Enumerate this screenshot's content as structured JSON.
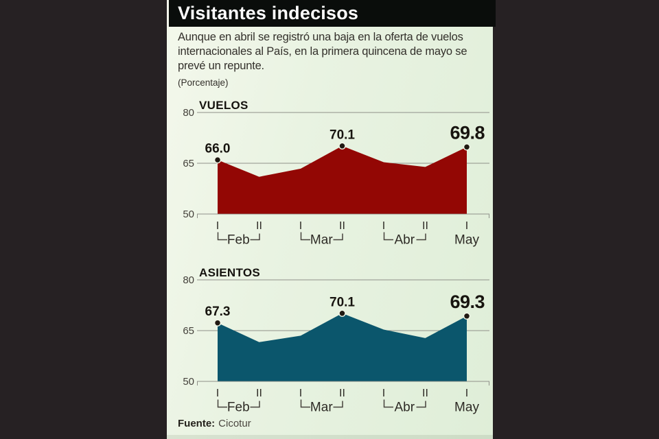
{
  "header": {
    "title": "Visitantes indecisos"
  },
  "intro": {
    "paragraph": "Aunque en abril se registró una baja en la oferta de vuelos internacionales al País, en la primera quincena de mayo se prevé un repunte.",
    "unit_note": "(Porcentaje)"
  },
  "footer": {
    "source_label": "Fuente:",
    "source_value": "Cicotur"
  },
  "colors": {
    "outer_bg": "#262123",
    "title_bar": "#0a0d0b",
    "panel_bg": "#e7f2e0",
    "vuelos_area": "#930704",
    "asientos_area": "#0b566c",
    "dot": "#201912",
    "dot_ring": "#f0f5e6",
    "grid": "#8f9089",
    "bracket": "#46423c",
    "text_dark": "#2d2a25"
  },
  "axis": {
    "point_ticks": [
      "I",
      "II",
      "I",
      "II",
      "I",
      "II",
      "I"
    ],
    "months": [
      {
        "label": "Feb",
        "from": 0,
        "to": 1
      },
      {
        "label": "Mar",
        "from": 2,
        "to": 3
      },
      {
        "label": "Abr",
        "from": 4,
        "to": 5
      },
      {
        "label": "May",
        "from": 6,
        "to": 6
      }
    ]
  },
  "chart_data": [
    {
      "type": "area",
      "id": "vuelos",
      "title": "VUELOS",
      "color": "#930704",
      "ylim": [
        50,
        80
      ],
      "y_ticks": [
        80,
        65,
        50
      ],
      "x_ticks": [
        "Feb I",
        "Feb II",
        "Mar I",
        "Mar II",
        "Abr I",
        "Abr II",
        "May I"
      ],
      "values": [
        66.0,
        61.0,
        63.4,
        70.1,
        65.3,
        63.9,
        69.8
      ],
      "labeled_points": [
        {
          "index": 0,
          "label": "66.0",
          "emphasis": false
        },
        {
          "index": 3,
          "label": "70.1",
          "emphasis": false
        },
        {
          "index": 6,
          "label": "69.8",
          "emphasis": true
        }
      ]
    },
    {
      "type": "area",
      "id": "asientos",
      "title": "ASIENTOS",
      "color": "#0b566c",
      "ylim": [
        50,
        80
      ],
      "y_ticks": [
        80,
        65,
        50
      ],
      "x_ticks": [
        "Feb I",
        "Feb II",
        "Mar I",
        "Mar II",
        "Abr I",
        "Abr II",
        "May I"
      ],
      "values": [
        67.3,
        61.6,
        63.5,
        70.1,
        65.3,
        62.8,
        69.3
      ],
      "labeled_points": [
        {
          "index": 0,
          "label": "67.3",
          "emphasis": false
        },
        {
          "index": 3,
          "label": "70.1",
          "emphasis": false
        },
        {
          "index": 6,
          "label": "69.3",
          "emphasis": true
        }
      ]
    }
  ]
}
